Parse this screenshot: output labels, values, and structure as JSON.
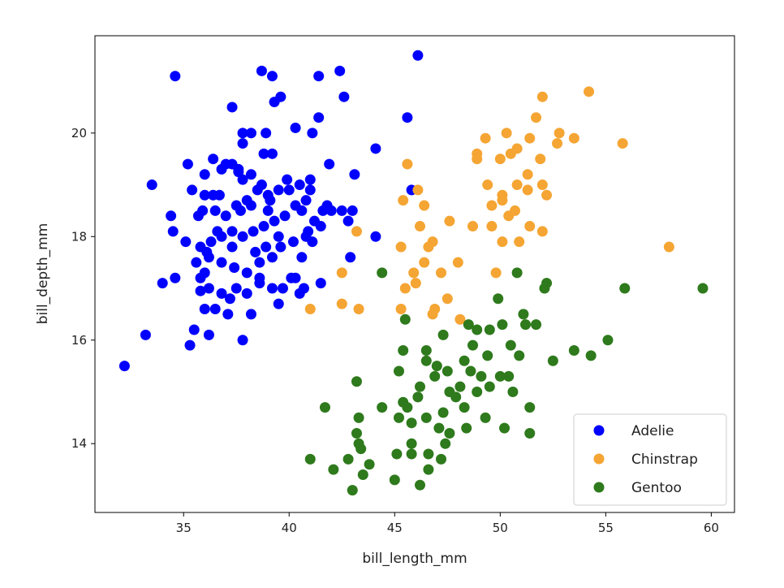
{
  "chart_data": {
    "type": "scatter",
    "title": "",
    "xlabel": "bill_length_mm",
    "ylabel": "bill_depth_mm",
    "xlim": [
      30.8,
      61.1
    ],
    "ylim": [
      12.67,
      21.88
    ],
    "xticks": [
      35,
      40,
      45,
      50,
      55,
      60
    ],
    "yticks": [
      14,
      16,
      18,
      20
    ],
    "grid": false,
    "legend_position": "bottom-right",
    "series": [
      {
        "name": "Adelie",
        "color": "#0000ff",
        "points": [
          [
            32.2,
            15.5
          ],
          [
            33.2,
            16.1
          ],
          [
            33.5,
            19.0
          ],
          [
            34.6,
            21.1
          ],
          [
            34.4,
            18.4
          ],
          [
            34.5,
            18.1
          ],
          [
            34.0,
            17.1
          ],
          [
            34.6,
            17.2
          ],
          [
            35.1,
            17.9
          ],
          [
            35.2,
            19.4
          ],
          [
            35.4,
            18.9
          ],
          [
            35.3,
            15.9
          ],
          [
            35.5,
            16.2
          ],
          [
            35.6,
            17.5
          ],
          [
            35.8,
            16.95
          ],
          [
            36.0,
            19.2
          ],
          [
            36.0,
            16.6
          ],
          [
            36.1,
            17.7
          ],
          [
            36.2,
            16.1
          ],
          [
            36.4,
            19.5
          ],
          [
            36.5,
            16.6
          ],
          [
            36.8,
            19.3
          ],
          [
            36.7,
            18.8
          ],
          [
            37.1,
            16.5
          ],
          [
            37.3,
            20.5
          ],
          [
            37.3,
            19.4
          ],
          [
            37.6,
            19.25
          ],
          [
            37.8,
            20.0
          ],
          [
            37.8,
            19.8
          ],
          [
            37.8,
            16.0
          ],
          [
            38.2,
            20.0
          ],
          [
            38.2,
            19.2
          ],
          [
            38.2,
            16.5
          ],
          [
            38.7,
            21.2
          ],
          [
            38.9,
            20.0
          ],
          [
            39.2,
            21.1
          ],
          [
            39.3,
            20.6
          ],
          [
            39.6,
            20.7
          ],
          [
            39.2,
            19.6
          ],
          [
            39.5,
            16.7
          ],
          [
            40.3,
            20.1
          ],
          [
            41.1,
            20.0
          ],
          [
            41.4,
            20.3
          ],
          [
            41.4,
            21.1
          ],
          [
            42.4,
            21.2
          ],
          [
            42.6,
            20.7
          ],
          [
            41.9,
            19.4
          ],
          [
            43.1,
            19.2
          ],
          [
            44.1,
            19.7
          ],
          [
            44.1,
            18.0
          ],
          [
            42.9,
            17.6
          ],
          [
            46.1,
            21.5
          ],
          [
            45.6,
            20.3
          ],
          [
            45.8,
            18.9
          ],
          [
            36,
            18.8
          ],
          [
            36.5,
            18.5
          ],
          [
            37,
            18.4
          ],
          [
            37.5,
            18.6
          ],
          [
            38,
            18.7
          ],
          [
            38.5,
            18.9
          ],
          [
            39,
            18.8
          ],
          [
            39.5,
            18.9
          ],
          [
            40,
            18.9
          ],
          [
            40.5,
            19.0
          ],
          [
            41,
            18.9
          ],
          [
            41,
            19.1
          ],
          [
            40.6,
            18.5
          ],
          [
            40.3,
            18.6
          ],
          [
            39.8,
            18.4
          ],
          [
            39.3,
            18.3
          ],
          [
            38.8,
            18.2
          ],
          [
            38.3,
            18.1
          ],
          [
            37.8,
            18.0
          ],
          [
            37.3,
            18.1
          ],
          [
            36.8,
            18.0
          ],
          [
            36.3,
            17.9
          ],
          [
            35.8,
            17.8
          ],
          [
            36.2,
            17.6
          ],
          [
            36.8,
            17.5
          ],
          [
            37.4,
            17.4
          ],
          [
            38,
            17.3
          ],
          [
            38.6,
            17.5
          ],
          [
            39.2,
            17.6
          ],
          [
            39.6,
            17.8
          ],
          [
            40.2,
            17.9
          ],
          [
            40.8,
            18.0
          ],
          [
            41.2,
            18.3
          ],
          [
            41.6,
            18.5
          ],
          [
            41.5,
            18.2
          ],
          [
            42.0,
            18.5
          ],
          [
            42.5,
            18.5
          ],
          [
            42.8,
            18.3
          ],
          [
            43.0,
            18.5
          ],
          [
            41.1,
            17.9
          ],
          [
            40.6,
            17.6
          ],
          [
            40.1,
            17.2
          ],
          [
            39.7,
            17.0
          ],
          [
            39.2,
            17.0
          ],
          [
            38.6,
            17.1
          ],
          [
            38.0,
            16.9
          ],
          [
            37.5,
            17.0
          ],
          [
            36.8,
            16.9
          ],
          [
            36.2,
            17.0
          ],
          [
            35.8,
            17.2
          ],
          [
            36.0,
            17.3
          ],
          [
            37.2,
            16.8
          ],
          [
            40.3,
            17.2
          ],
          [
            40.5,
            16.9
          ],
          [
            41.5,
            17.1
          ],
          [
            39.0,
            18.5
          ],
          [
            38.7,
            19.0
          ],
          [
            38.2,
            18.6
          ],
          [
            37.8,
            19.1
          ],
          [
            36.6,
            18.1
          ],
          [
            35.9,
            18.5
          ],
          [
            39.9,
            19.1
          ],
          [
            40.8,
            18.7
          ],
          [
            41.8,
            18.6
          ],
          [
            37.7,
            18.5
          ],
          [
            39.5,
            18.0
          ],
          [
            38.9,
            17.8
          ],
          [
            38.4,
            17.7
          ],
          [
            37.3,
            17.8
          ],
          [
            40.9,
            18.1
          ],
          [
            37.6,
            19.3
          ],
          [
            38.8,
            19.6
          ],
          [
            39.1,
            18.7
          ],
          [
            37,
            19.4
          ],
          [
            36.4,
            18.8
          ],
          [
            35.7,
            18.4
          ],
          [
            38.6,
            17.2
          ],
          [
            40.7,
            17.0
          ]
        ]
      },
      {
        "name": "Chinstrap",
        "color": "#f5a533",
        "points": [
          [
            54.2,
            20.8
          ],
          [
            52.0,
            20.7
          ],
          [
            51.7,
            20.3
          ],
          [
            52.8,
            20.0
          ],
          [
            53.5,
            19.9
          ],
          [
            55.8,
            19.8
          ],
          [
            52.7,
            19.8
          ],
          [
            50.3,
            20.0
          ],
          [
            49.3,
            19.9
          ],
          [
            48.9,
            19.6
          ],
          [
            48.9,
            19.5
          ],
          [
            50.5,
            19.6
          ],
          [
            50.8,
            19.7
          ],
          [
            51.4,
            19.9
          ],
          [
            51.9,
            19.5
          ],
          [
            50.0,
            19.5
          ],
          [
            45.6,
            19.4
          ],
          [
            49.4,
            19.0
          ],
          [
            50.1,
            18.8
          ],
          [
            50.1,
            18.7
          ],
          [
            50.8,
            19.0
          ],
          [
            51.3,
            19.2
          ],
          [
            52.0,
            19.0
          ],
          [
            52.2,
            18.8
          ],
          [
            51.3,
            18.9
          ],
          [
            49.6,
            18.6
          ],
          [
            50.4,
            18.4
          ],
          [
            50.7,
            18.5
          ],
          [
            46.1,
            18.9
          ],
          [
            45.4,
            18.7
          ],
          [
            46.4,
            18.6
          ],
          [
            47.6,
            18.3
          ],
          [
            46.2,
            18.2
          ],
          [
            48.7,
            18.2
          ],
          [
            49.6,
            18.2
          ],
          [
            51.4,
            18.2
          ],
          [
            52.0,
            18.1
          ],
          [
            50.1,
            17.9
          ],
          [
            50.9,
            17.9
          ],
          [
            46.8,
            17.9
          ],
          [
            46.6,
            17.8
          ],
          [
            45.3,
            17.8
          ],
          [
            58.0,
            17.8
          ],
          [
            43.2,
            18.1
          ],
          [
            48.0,
            17.5
          ],
          [
            46.4,
            17.5
          ],
          [
            45.9,
            17.3
          ],
          [
            47.2,
            17.3
          ],
          [
            49.8,
            17.3
          ],
          [
            42.5,
            17.3
          ],
          [
            46.0,
            17.1
          ],
          [
            45.5,
            17.0
          ],
          [
            47.5,
            16.8
          ],
          [
            42.5,
            16.7
          ],
          [
            41.0,
            16.6
          ],
          [
            43.3,
            16.6
          ],
          [
            45.3,
            16.6
          ],
          [
            46.9,
            16.6
          ],
          [
            46.8,
            16.5
          ],
          [
            48.1,
            16.4
          ]
        ]
      },
      {
        "name": "Gentoo",
        "color": "#2e7a1c",
        "points": [
          [
            59.6,
            17.0
          ],
          [
            55.9,
            17.0
          ],
          [
            52.2,
            17.1
          ],
          [
            52.1,
            17.0
          ],
          [
            50.8,
            17.3
          ],
          [
            44.4,
            17.3
          ],
          [
            49.9,
            16.8
          ],
          [
            51.1,
            16.5
          ],
          [
            51.2,
            16.3
          ],
          [
            51.7,
            16.3
          ],
          [
            45.5,
            16.4
          ],
          [
            55.1,
            16.0
          ],
          [
            54.3,
            15.7
          ],
          [
            53.5,
            15.8
          ],
          [
            52.5,
            15.6
          ],
          [
            48.5,
            16.3
          ],
          [
            48.9,
            16.2
          ],
          [
            49.5,
            16.2
          ],
          [
            50.1,
            16.3
          ],
          [
            47.3,
            16.1
          ],
          [
            45.4,
            15.8
          ],
          [
            46.5,
            15.8
          ],
          [
            48.7,
            15.9
          ],
          [
            50.5,
            15.9
          ],
          [
            50.9,
            15.7
          ],
          [
            46.5,
            15.6
          ],
          [
            48.3,
            15.6
          ],
          [
            49.4,
            15.7
          ],
          [
            45.2,
            15.4
          ],
          [
            47.5,
            15.4
          ],
          [
            46.9,
            15.3
          ],
          [
            43.2,
            15.2
          ],
          [
            50.0,
            15.3
          ],
          [
            50.4,
            15.3
          ],
          [
            46.2,
            15.1
          ],
          [
            48.1,
            15.1
          ],
          [
            49.5,
            15.1
          ],
          [
            47.6,
            15.0
          ],
          [
            50.6,
            15.0
          ],
          [
            48.9,
            15.0
          ],
          [
            45.4,
            14.8
          ],
          [
            41.7,
            14.7
          ],
          [
            44.4,
            14.7
          ],
          [
            45.6,
            14.7
          ],
          [
            48.3,
            14.7
          ],
          [
            45.2,
            14.5
          ],
          [
            49.3,
            14.5
          ],
          [
            51.4,
            14.7
          ],
          [
            43.3,
            14.5
          ],
          [
            46.5,
            14.5
          ],
          [
            45.8,
            14.4
          ],
          [
            47.1,
            14.3
          ],
          [
            48.4,
            14.3
          ],
          [
            50.2,
            14.3
          ],
          [
            51.4,
            14.2
          ],
          [
            43.2,
            14.2
          ],
          [
            47.6,
            14.2
          ],
          [
            43.3,
            14.0
          ],
          [
            45.8,
            14.0
          ],
          [
            47.4,
            14.0
          ],
          [
            43.4,
            13.9
          ],
          [
            45.1,
            13.8
          ],
          [
            45.8,
            13.8
          ],
          [
            46.6,
            13.8
          ],
          [
            41.0,
            13.7
          ],
          [
            42.8,
            13.7
          ],
          [
            47.2,
            13.7
          ],
          [
            43.8,
            13.6
          ],
          [
            42.1,
            13.5
          ],
          [
            46.6,
            13.5
          ],
          [
            43.5,
            13.4
          ],
          [
            45.0,
            13.3
          ],
          [
            46.2,
            13.2
          ],
          [
            43.0,
            13.1
          ],
          [
            47.0,
            15.5
          ],
          [
            47.9,
            14.9
          ],
          [
            49.1,
            15.3
          ],
          [
            46.1,
            14.9
          ],
          [
            47.3,
            14.6
          ],
          [
            48.6,
            15.4
          ]
        ]
      }
    ]
  }
}
